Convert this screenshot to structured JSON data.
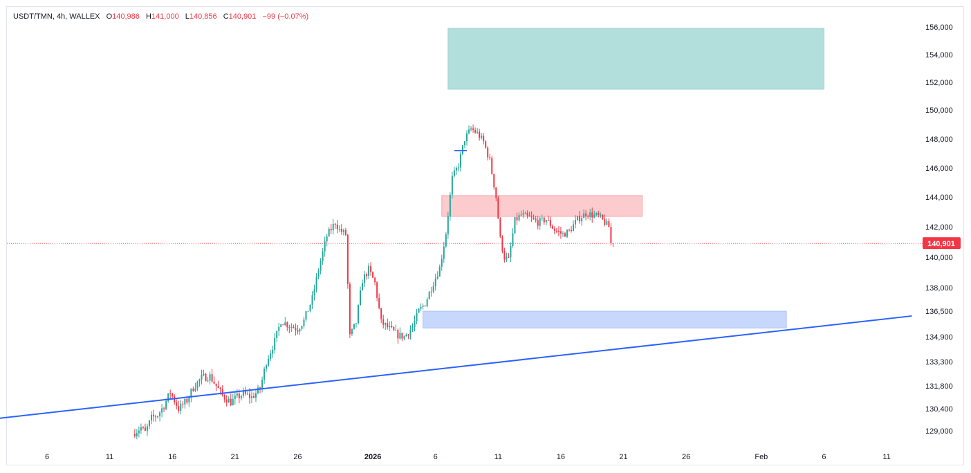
{
  "legend": {
    "symbol": "USDT/TMN, 4h, WALLEX",
    "open_label": "O",
    "open": "140,986",
    "high_label": "H",
    "high": "141,000",
    "low_label": "L",
    "low": "140,856",
    "close_label": "C",
    "close": "140,901",
    "change": "−99 (−0.07%)"
  },
  "colors": {
    "up": "#26a69a",
    "down": "#f23645",
    "trendline": "#2962ff",
    "green_zone": "#b2dfdb",
    "red_zone": "#fccbcd",
    "blue_zone": "#c8d7fc",
    "last_price": "#f23645"
  },
  "chart_data": {
    "type": "candlestick",
    "symbol": "USDT/TMN",
    "interval": "4h",
    "exchange": "WALLEX",
    "y_ticks": [
      {
        "label": "156,000",
        "value": 156000
      },
      {
        "label": "154,000",
        "value": 154000
      },
      {
        "label": "152,000",
        "value": 152000
      },
      {
        "label": "150,000",
        "value": 150000
      },
      {
        "label": "148,000",
        "value": 148000
      },
      {
        "label": "146,000",
        "value": 146000
      },
      {
        "label": "144,000",
        "value": 144000
      },
      {
        "label": "142,000",
        "value": 142000
      },
      {
        "label": "140,000",
        "value": 140000
      },
      {
        "label": "138,000",
        "value": 138000
      },
      {
        "label": "136,500",
        "value": 136500
      },
      {
        "label": "134,900",
        "value": 134900
      },
      {
        "label": "133,300",
        "value": 133300
      },
      {
        "label": "131,800",
        "value": 131800
      },
      {
        "label": "130,400",
        "value": 130400
      },
      {
        "label": "129,000",
        "value": 129000
      }
    ],
    "x_ticks": [
      {
        "label": "6",
        "date": "2025-12-06"
      },
      {
        "label": "11",
        "date": "2025-12-11"
      },
      {
        "label": "16",
        "date": "2025-12-16"
      },
      {
        "label": "21",
        "date": "2025-12-21"
      },
      {
        "label": "26",
        "date": "2025-12-26"
      },
      {
        "label": "2026",
        "date": "2026-01-01",
        "bold": true
      },
      {
        "label": "6",
        "date": "2026-01-06"
      },
      {
        "label": "11",
        "date": "2026-01-11"
      },
      {
        "label": "16",
        "date": "2026-01-16"
      },
      {
        "label": "21",
        "date": "2026-01-21"
      },
      {
        "label": "26",
        "date": "2026-01-26"
      },
      {
        "label": "Feb",
        "date": "2026-02-01"
      },
      {
        "label": "6",
        "date": "2026-02-06"
      },
      {
        "label": "11",
        "date": "2026-02-11"
      }
    ],
    "last_price": {
      "label": "140,901",
      "value": 140901
    },
    "price_path": [
      [
        "2025-12-13T00:00",
        128800
      ],
      [
        "2025-12-13T16:00",
        129200
      ],
      [
        "2025-12-14T00:00",
        128900
      ],
      [
        "2025-12-14T12:00",
        129800
      ],
      [
        "2025-12-15T00:00",
        130000
      ],
      [
        "2025-12-15T12:00",
        130600
      ],
      [
        "2025-12-16T00:00",
        131400
      ],
      [
        "2025-12-16T16:00",
        130400
      ],
      [
        "2025-12-17T08:00",
        130900
      ],
      [
        "2025-12-17T20:00",
        131700
      ],
      [
        "2025-12-18T12:00",
        132300
      ],
      [
        "2025-12-19T04:00",
        132400
      ],
      [
        "2025-12-19T16:00",
        131800
      ],
      [
        "2025-12-20T04:00",
        131200
      ],
      [
        "2025-12-20T20:00",
        130800
      ],
      [
        "2025-12-21T08:00",
        131100
      ],
      [
        "2025-12-21T20:00",
        131300
      ],
      [
        "2025-12-22T12:00",
        131100
      ],
      [
        "2025-12-23T04:00",
        131600
      ],
      [
        "2025-12-23T16:00",
        133300
      ],
      [
        "2025-12-24T08:00",
        134600
      ],
      [
        "2025-12-24T20:00",
        135900
      ],
      [
        "2025-12-25T12:00",
        135600
      ],
      [
        "2025-12-26T04:00",
        135400
      ],
      [
        "2025-12-26T16:00",
        135900
      ],
      [
        "2025-12-27T08:00",
        137300
      ],
      [
        "2025-12-27T20:00",
        139200
      ],
      [
        "2025-12-28T12:00",
        141400
      ],
      [
        "2025-12-29T04:00",
        142300
      ],
      [
        "2025-12-29T12:00",
        141800
      ],
      [
        "2025-12-30T00:00",
        141500
      ],
      [
        "2025-12-30T08:00",
        134900
      ],
      [
        "2025-12-30T20:00",
        135800
      ],
      [
        "2025-12-31T08:00",
        138500
      ],
      [
        "2025-12-31T20:00",
        139200
      ],
      [
        "2026-01-01T08:00",
        138300
      ],
      [
        "2026-01-01T20:00",
        135800
      ],
      [
        "2026-01-02T12:00",
        135400
      ],
      [
        "2026-01-03T04:00",
        135000
      ],
      [
        "2026-01-03T16:00",
        134900
      ],
      [
        "2026-01-04T08:00",
        135500
      ],
      [
        "2026-01-04T20:00",
        136500
      ],
      [
        "2026-01-05T08:00",
        137000
      ],
      [
        "2026-01-05T20:00",
        138000
      ],
      [
        "2026-01-06T12:00",
        139300
      ],
      [
        "2026-01-07T00:00",
        141600
      ],
      [
        "2026-01-07T12:00",
        145300
      ],
      [
        "2026-01-08T00:00",
        146200
      ],
      [
        "2026-01-08T12:00",
        148000
      ],
      [
        "2026-01-09T00:00",
        148700
      ],
      [
        "2026-01-09T12:00",
        148400
      ],
      [
        "2026-01-10T00:00",
        147800
      ],
      [
        "2026-01-10T12:00",
        146500
      ],
      [
        "2026-01-11T00:00",
        144000
      ],
      [
        "2026-01-11T08:00",
        141200
      ],
      [
        "2026-01-11T16:00",
        140000
      ],
      [
        "2026-01-12T00:00",
        139800
      ],
      [
        "2026-01-12T12:00",
        142400
      ],
      [
        "2026-01-13T00:00",
        142800
      ],
      [
        "2026-01-13T16:00",
        142600
      ],
      [
        "2026-01-14T08:00",
        142300
      ],
      [
        "2026-01-15T00:00",
        142500
      ],
      [
        "2026-01-15T16:00",
        141800
      ],
      [
        "2026-01-16T08:00",
        141500
      ],
      [
        "2026-01-16T20:00",
        141700
      ],
      [
        "2026-01-17T12:00",
        142500
      ],
      [
        "2026-01-18T04:00",
        142900
      ],
      [
        "2026-01-18T16:00",
        142800
      ],
      [
        "2026-01-19T04:00",
        142700
      ],
      [
        "2026-01-19T16:00",
        142300
      ],
      [
        "2026-01-20T00:00",
        142000
      ],
      [
        "2026-01-20T04:00",
        140901
      ]
    ],
    "drawings": {
      "trendline": {
        "from": [
          "2025-11-30T00:00",
          129600
        ],
        "to": [
          "2026-02-13T00:00",
          136200
        ]
      },
      "green_zone": {
        "from": "2026-01-07T00:00",
        "to": "2026-02-06T00:00",
        "top": 155900,
        "bottom": 151500
      },
      "red_zone": {
        "from": "2026-01-06T12:00",
        "to": "2026-01-22T12:00",
        "top": 144100,
        "bottom": 142700
      },
      "blue_zone": {
        "from": "2026-01-05T00:00",
        "to": "2026-02-03T00:00",
        "top": 136500,
        "bottom": 135450
      }
    },
    "grid": false,
    "legend_position": "top-left"
  }
}
